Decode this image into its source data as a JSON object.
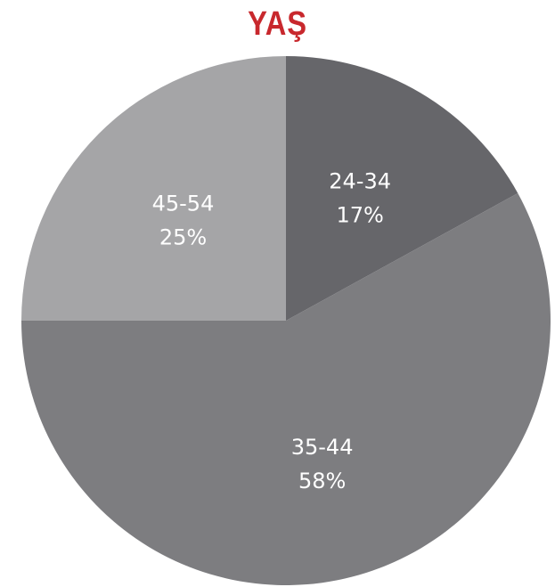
{
  "chart_data": {
    "type": "pie",
    "title": "YAŞ",
    "slices": [
      {
        "label": "24-34",
        "percent_label": "17%",
        "value": 17,
        "color": "#66666a"
      },
      {
        "label": "35-44",
        "percent_label": "58%",
        "value": 58,
        "color": "#7d7d80"
      },
      {
        "label": "45-54",
        "percent_label": "25%",
        "value": 25,
        "color": "#a5a5a7"
      }
    ],
    "title_color": "#c8282d"
  }
}
